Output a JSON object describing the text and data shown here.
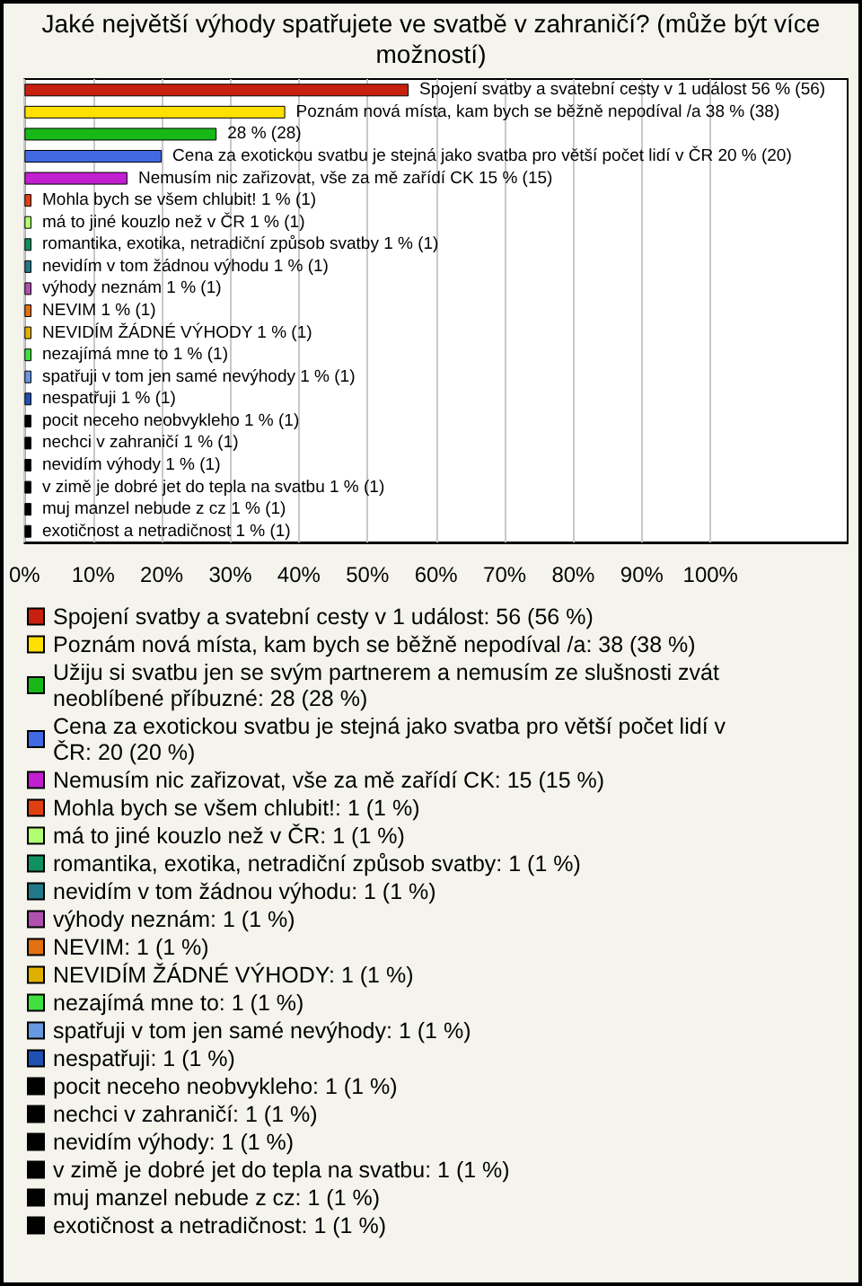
{
  "chart_data": {
    "type": "bar",
    "orientation": "horizontal",
    "title": "Jaké největší výhody spatřujete ve svatbě v zahraničí? (může být více možností)",
    "categories": [
      null,
      null,
      null,
      null,
      null,
      null,
      null,
      null,
      null,
      null,
      null,
      null,
      null,
      null,
      null,
      null,
      null,
      null,
      null,
      null,
      null
    ],
    "series": [
      {
        "name": "Spojení svatby a svatební cesty v 1 událost: 56 (56 %)",
        "color": "#c8200e",
        "values": [
          56,
          null,
          null,
          null,
          null,
          null,
          null,
          null,
          null,
          null,
          null,
          null,
          null,
          null,
          null,
          null,
          null,
          null,
          null,
          null,
          null
        ],
        "value_labels": [
          "Spojení svatby a svatební cesty v 1 událost 56 % (56)",
          null,
          null,
          null,
          null,
          null,
          null,
          null,
          null,
          null,
          null,
          null,
          null,
          null,
          null,
          null,
          null,
          null,
          null,
          null,
          null
        ]
      },
      {
        "name": "Poznám nová místa, kam bych se běžně nepodíval /a: 38 (38 %)",
        "color": "#ffe000",
        "values": [
          null,
          38,
          null,
          null,
          null,
          null,
          null,
          null,
          null,
          null,
          null,
          null,
          null,
          null,
          null,
          null,
          null,
          null,
          null,
          null,
          null
        ],
        "value_labels": [
          null,
          "Poznám nová místa, kam bych se běžně nepodíval /a 38 % (38)",
          null,
          null,
          null,
          null,
          null,
          null,
          null,
          null,
          null,
          null,
          null,
          null,
          null,
          null,
          null,
          null,
          null,
          null,
          null
        ]
      },
      {
        "name": "Užiju si svatbu jen se svým partnerem a nemusím ze slušnosti zvát neoblíbené příbuzné: 28 (28 %)",
        "color": "#18b818",
        "values": [
          null,
          null,
          28,
          null,
          null,
          null,
          null,
          null,
          null,
          null,
          null,
          null,
          null,
          null,
          null,
          null,
          null,
          null,
          null,
          null,
          null
        ],
        "value_labels": [
          null,
          null,
          "28 % (28)",
          null,
          null,
          null,
          null,
          null,
          null,
          null,
          null,
          null,
          null,
          null,
          null,
          null,
          null,
          null,
          null,
          null,
          null
        ]
      },
      {
        "name": "Cena za exotickou svatbu je stejná jako svatba pro větší počet lidí v ČR: 20 (20 %)",
        "color": "#4169e1",
        "values": [
          null,
          null,
          null,
          20,
          null,
          null,
          null,
          null,
          null,
          null,
          null,
          null,
          null,
          null,
          null,
          null,
          null,
          null,
          null,
          null,
          null
        ],
        "value_labels": [
          null,
          null,
          null,
          "Cena za exotickou svatbu je stejná jako svatba pro větší počet lidí v ČR 20 % (20)",
          null,
          null,
          null,
          null,
          null,
          null,
          null,
          null,
          null,
          null,
          null,
          null,
          null,
          null,
          null,
          null,
          null
        ]
      },
      {
        "name": "Nemusím nic zařizovat, vše za mě zařídí CK: 15 (15 %)",
        "color": "#c020d0",
        "values": [
          null,
          null,
          null,
          null,
          15,
          null,
          null,
          null,
          null,
          null,
          null,
          null,
          null,
          null,
          null,
          null,
          null,
          null,
          null,
          null,
          null
        ],
        "value_labels": [
          null,
          null,
          null,
          null,
          "Nemusím nic zařizovat, vše za mě zařídí CK 15 % (15)",
          null,
          null,
          null,
          null,
          null,
          null,
          null,
          null,
          null,
          null,
          null,
          null,
          null,
          null,
          null,
          null
        ]
      },
      {
        "name": "Mohla bych se všem chlubit!: 1 (1 %)",
        "color": "#e04010",
        "values": [
          null,
          null,
          null,
          null,
          null,
          1,
          null,
          null,
          null,
          null,
          null,
          null,
          null,
          null,
          null,
          null,
          null,
          null,
          null,
          null,
          null
        ],
        "value_labels": [
          null,
          null,
          null,
          null,
          null,
          "Mohla bych se všem chlubit! 1 % (1)",
          null,
          null,
          null,
          null,
          null,
          null,
          null,
          null,
          null,
          null,
          null,
          null,
          null,
          null,
          null
        ]
      },
      {
        "name": "má to jiné kouzlo než v ČR: 1 (1 %)",
        "color": "#b0ff70",
        "values": [
          null,
          null,
          null,
          null,
          null,
          null,
          1,
          null,
          null,
          null,
          null,
          null,
          null,
          null,
          null,
          null,
          null,
          null,
          null,
          null,
          null
        ],
        "value_labels": [
          null,
          null,
          null,
          null,
          null,
          null,
          "má to jiné kouzlo než v ČR 1 % (1)",
          null,
          null,
          null,
          null,
          null,
          null,
          null,
          null,
          null,
          null,
          null,
          null,
          null,
          null
        ]
      },
      {
        "name": "romantika, exotika, netradiční způsob svatby: 1 (1 %)",
        "color": "#109060",
        "values": [
          null,
          null,
          null,
          null,
          null,
          null,
          null,
          1,
          null,
          null,
          null,
          null,
          null,
          null,
          null,
          null,
          null,
          null,
          null,
          null,
          null
        ],
        "value_labels": [
          null,
          null,
          null,
          null,
          null,
          null,
          null,
          "romantika, exotika, netradiční způsob svatby 1 % (1)",
          null,
          null,
          null,
          null,
          null,
          null,
          null,
          null,
          null,
          null,
          null,
          null,
          null
        ]
      },
      {
        "name": "nevidím v tom žádnou výhodu: 1 (1 %)",
        "color": "#207888",
        "values": [
          null,
          null,
          null,
          null,
          null,
          null,
          null,
          null,
          1,
          null,
          null,
          null,
          null,
          null,
          null,
          null,
          null,
          null,
          null,
          null,
          null
        ],
        "value_labels": [
          null,
          null,
          null,
          null,
          null,
          null,
          null,
          null,
          "nevidím v tom žádnou výhodu 1 % (1)",
          null,
          null,
          null,
          null,
          null,
          null,
          null,
          null,
          null,
          null,
          null,
          null
        ]
      },
      {
        "name": "výhody neznám: 1 (1 %)",
        "color": "#b050b0",
        "values": [
          null,
          null,
          null,
          null,
          null,
          null,
          null,
          null,
          null,
          1,
          null,
          null,
          null,
          null,
          null,
          null,
          null,
          null,
          null,
          null,
          null
        ],
        "value_labels": [
          null,
          null,
          null,
          null,
          null,
          null,
          null,
          null,
          null,
          "výhody neznám 1 % (1)",
          null,
          null,
          null,
          null,
          null,
          null,
          null,
          null,
          null,
          null,
          null
        ]
      },
      {
        "name": "NEVIM: 1 (1 %)",
        "color": "#e07010",
        "values": [
          null,
          null,
          null,
          null,
          null,
          null,
          null,
          null,
          null,
          null,
          1,
          null,
          null,
          null,
          null,
          null,
          null,
          null,
          null,
          null,
          null
        ],
        "value_labels": [
          null,
          null,
          null,
          null,
          null,
          null,
          null,
          null,
          null,
          null,
          "NEVIM 1 % (1)",
          null,
          null,
          null,
          null,
          null,
          null,
          null,
          null,
          null,
          null
        ]
      },
      {
        "name": "NEVIDÍM ŽÁDNÉ VÝHODY: 1 (1 %)",
        "color": "#e0b000",
        "values": [
          null,
          null,
          null,
          null,
          null,
          null,
          null,
          null,
          null,
          null,
          null,
          1,
          null,
          null,
          null,
          null,
          null,
          null,
          null,
          null,
          null
        ],
        "value_labels": [
          null,
          null,
          null,
          null,
          null,
          null,
          null,
          null,
          null,
          null,
          null,
          "NEVIDÍM ŽÁDNÉ VÝHODY 1 % (1)",
          null,
          null,
          null,
          null,
          null,
          null,
          null,
          null,
          null
        ]
      },
      {
        "name": "nezajímá mne to: 1 (1 %)",
        "color": "#40e040",
        "values": [
          null,
          null,
          null,
          null,
          null,
          null,
          null,
          null,
          null,
          null,
          null,
          null,
          1,
          null,
          null,
          null,
          null,
          null,
          null,
          null,
          null
        ],
        "value_labels": [
          null,
          null,
          null,
          null,
          null,
          null,
          null,
          null,
          null,
          null,
          null,
          null,
          "nezajímá mne to 1 % (1)",
          null,
          null,
          null,
          null,
          null,
          null,
          null,
          null
        ]
      },
      {
        "name": "spatřuji v tom jen samé nevýhody: 1 (1 %)",
        "color": "#6898e0",
        "values": [
          null,
          null,
          null,
          null,
          null,
          null,
          null,
          null,
          null,
          null,
          null,
          null,
          null,
          1,
          null,
          null,
          null,
          null,
          null,
          null,
          null
        ],
        "value_labels": [
          null,
          null,
          null,
          null,
          null,
          null,
          null,
          null,
          null,
          null,
          null,
          null,
          null,
          "spatřuji v tom jen samé nevýhody 1 % (1)",
          null,
          null,
          null,
          null,
          null,
          null,
          null
        ]
      },
      {
        "name": "nespatřuji: 1 (1 %)",
        "color": "#2050b0",
        "values": [
          null,
          null,
          null,
          null,
          null,
          null,
          null,
          null,
          null,
          null,
          null,
          null,
          null,
          null,
          1,
          null,
          null,
          null,
          null,
          null,
          null
        ],
        "value_labels": [
          null,
          null,
          null,
          null,
          null,
          null,
          null,
          null,
          null,
          null,
          null,
          null,
          null,
          null,
          "nespatřuji 1 % (1)",
          null,
          null,
          null,
          null,
          null,
          null
        ]
      },
      {
        "name": "pocit neceho neobvykleho: 1 (1 %)",
        "color": "#000000",
        "values": [
          null,
          null,
          null,
          null,
          null,
          null,
          null,
          null,
          null,
          null,
          null,
          null,
          null,
          null,
          null,
          1,
          null,
          null,
          null,
          null,
          null
        ],
        "value_labels": [
          null,
          null,
          null,
          null,
          null,
          null,
          null,
          null,
          null,
          null,
          null,
          null,
          null,
          null,
          null,
          "pocit neceho neobvykleho 1 % (1)",
          null,
          null,
          null,
          null,
          null
        ]
      },
      {
        "name": "nechci v zahraničí: 1 (1 %)",
        "color": "#000000",
        "values": [
          null,
          null,
          null,
          null,
          null,
          null,
          null,
          null,
          null,
          null,
          null,
          null,
          null,
          null,
          null,
          null,
          1,
          null,
          null,
          null,
          null
        ],
        "value_labels": [
          null,
          null,
          null,
          null,
          null,
          null,
          null,
          null,
          null,
          null,
          null,
          null,
          null,
          null,
          null,
          null,
          "nechci v zahraničí 1 % (1)",
          null,
          null,
          null,
          null
        ]
      },
      {
        "name": "nevidím výhody: 1 (1 %)",
        "color": "#000000",
        "values": [
          null,
          null,
          null,
          null,
          null,
          null,
          null,
          null,
          null,
          null,
          null,
          null,
          null,
          null,
          null,
          null,
          null,
          1,
          null,
          null,
          null
        ],
        "value_labels": [
          null,
          null,
          null,
          null,
          null,
          null,
          null,
          null,
          null,
          null,
          null,
          null,
          null,
          null,
          null,
          null,
          null,
          "nevidím výhody 1 % (1)",
          null,
          null,
          null
        ]
      },
      {
        "name": "v zimě je dobré jet do tepla na svatbu: 1 (1 %)",
        "color": "#000000",
        "values": [
          null,
          null,
          null,
          null,
          null,
          null,
          null,
          null,
          null,
          null,
          null,
          null,
          null,
          null,
          null,
          null,
          null,
          null,
          1,
          null,
          null
        ],
        "value_labels": [
          null,
          null,
          null,
          null,
          null,
          null,
          null,
          null,
          null,
          null,
          null,
          null,
          null,
          null,
          null,
          null,
          null,
          null,
          "v zimě je dobré jet do tepla na svatbu 1 % (1)",
          null,
          null
        ]
      },
      {
        "name": "muj manzel nebude z cz: 1 (1 %)",
        "color": "#000000",
        "values": [
          null,
          null,
          null,
          null,
          null,
          null,
          null,
          null,
          null,
          null,
          null,
          null,
          null,
          null,
          null,
          null,
          null,
          null,
          null,
          1,
          null
        ],
        "value_labels": [
          null,
          null,
          null,
          null,
          null,
          null,
          null,
          null,
          null,
          null,
          null,
          null,
          null,
          null,
          null,
          null,
          null,
          null,
          null,
          "muj manzel nebude z cz 1 % (1)",
          null
        ]
      },
      {
        "name": "exotičnost a netradičnost: 1 (1 %)",
        "color": "#000000",
        "values": [
          null,
          null,
          null,
          null,
          null,
          null,
          null,
          null,
          null,
          null,
          null,
          null,
          null,
          null,
          null,
          null,
          null,
          null,
          null,
          null,
          1
        ],
        "value_labels": [
          null,
          null,
          null,
          null,
          null,
          null,
          null,
          null,
          null,
          null,
          null,
          null,
          null,
          null,
          null,
          null,
          null,
          null,
          null,
          null,
          "exotičnost a netradičnost 1 % (1)"
        ]
      }
    ],
    "xlim": [
      0,
      120
    ],
    "xticks": [
      {
        "value": 0,
        "label": "0%"
      },
      {
        "value": 10,
        "label": "10%"
      },
      {
        "value": 20,
        "label": "20%"
      },
      {
        "value": 30,
        "label": "30%"
      },
      {
        "value": 40,
        "label": "40%"
      },
      {
        "value": 50,
        "label": "50%"
      },
      {
        "value": 60,
        "label": "60%"
      },
      {
        "value": 70,
        "label": "70%"
      },
      {
        "value": 80,
        "label": "80%"
      },
      {
        "value": 90,
        "label": "90%"
      },
      {
        "value": 100,
        "label": "100%"
      }
    ],
    "tick_labels": "x",
    "grid": "x",
    "legend": "bottom"
  }
}
